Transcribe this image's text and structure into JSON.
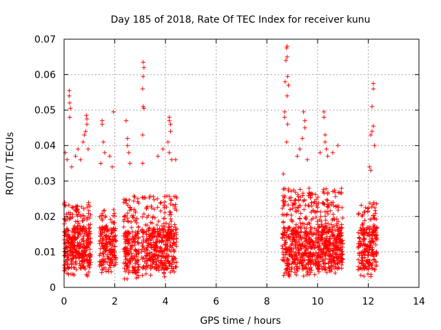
{
  "chart_data": {
    "type": "scatter",
    "title": "Day 185 of 2018, Rate Of TEC Index for receiver kunu",
    "xlabel": "GPS time / hours",
    "ylabel": "ROTI / TECUs",
    "xlim": [
      0,
      14
    ],
    "ylim": [
      0,
      0.07
    ],
    "grid": true,
    "marker": "+",
    "color": "#ff0000",
    "x_ticks": [
      "0",
      "2",
      "4",
      "6",
      "8",
      "10",
      "12",
      "14"
    ],
    "y_ticks": [
      "0",
      "0.01",
      "0.02",
      "0.03",
      "0.04",
      "0.05",
      "0.06",
      "0.07"
    ],
    "clusters": [
      {
        "x_start": 0.0,
        "x_end": 1.05,
        "y_low": 0.003,
        "y_high": 0.024,
        "count": 380
      },
      {
        "x_start": 1.4,
        "x_end": 2.05,
        "y_low": 0.003,
        "y_high": 0.022,
        "count": 190
      },
      {
        "x_start": 2.35,
        "x_end": 2.95,
        "y_low": 0.002,
        "y_high": 0.026,
        "count": 200
      },
      {
        "x_start": 3.05,
        "x_end": 4.45,
        "y_low": 0.003,
        "y_high": 0.026,
        "count": 420
      },
      {
        "x_start": 8.6,
        "x_end": 11.0,
        "y_low": 0.003,
        "y_high": 0.028,
        "count": 850
      },
      {
        "x_start": 11.6,
        "x_end": 12.35,
        "y_low": 0.003,
        "y_high": 0.024,
        "count": 230
      }
    ],
    "peaks": [
      {
        "x": 0.2,
        "y": 0.0555
      },
      {
        "x": 0.2,
        "y": 0.054
      },
      {
        "x": 0.22,
        "y": 0.052
      },
      {
        "x": 0.25,
        "y": 0.0505
      },
      {
        "x": 0.22,
        "y": 0.048
      },
      {
        "x": 0.05,
        "y": 0.038
      },
      {
        "x": 0.12,
        "y": 0.036
      },
      {
        "x": 0.3,
        "y": 0.034
      },
      {
        "x": 0.45,
        "y": 0.037
      },
      {
        "x": 0.55,
        "y": 0.039
      },
      {
        "x": 0.65,
        "y": 0.036
      },
      {
        "x": 0.75,
        "y": 0.041
      },
      {
        "x": 0.8,
        "y": 0.043
      },
      {
        "x": 0.88,
        "y": 0.0485
      },
      {
        "x": 0.9,
        "y": 0.0475
      },
      {
        "x": 0.9,
        "y": 0.046
      },
      {
        "x": 0.85,
        "y": 0.044
      },
      {
        "x": 0.95,
        "y": 0.039
      },
      {
        "x": 1.5,
        "y": 0.047
      },
      {
        "x": 1.5,
        "y": 0.046
      },
      {
        "x": 1.55,
        "y": 0.041
      },
      {
        "x": 1.6,
        "y": 0.038
      },
      {
        "x": 1.45,
        "y": 0.035
      },
      {
        "x": 1.95,
        "y": 0.0495
      },
      {
        "x": 1.8,
        "y": 0.037
      },
      {
        "x": 1.9,
        "y": 0.034
      },
      {
        "x": 2.45,
        "y": 0.047
      },
      {
        "x": 2.5,
        "y": 0.042
      },
      {
        "x": 2.5,
        "y": 0.04
      },
      {
        "x": 2.55,
        "y": 0.038
      },
      {
        "x": 2.6,
        "y": 0.035
      },
      {
        "x": 3.12,
        "y": 0.0635
      },
      {
        "x": 3.15,
        "y": 0.062
      },
      {
        "x": 3.12,
        "y": 0.0595
      },
      {
        "x": 3.1,
        "y": 0.056
      },
      {
        "x": 3.12,
        "y": 0.051
      },
      {
        "x": 3.15,
        "y": 0.0505
      },
      {
        "x": 3.1,
        "y": 0.043
      },
      {
        "x": 3.1,
        "y": 0.035
      },
      {
        "x": 3.7,
        "y": 0.037
      },
      {
        "x": 3.9,
        "y": 0.039
      },
      {
        "x": 4.15,
        "y": 0.048
      },
      {
        "x": 4.15,
        "y": 0.047
      },
      {
        "x": 4.2,
        "y": 0.046
      },
      {
        "x": 4.2,
        "y": 0.044
      },
      {
        "x": 4.1,
        "y": 0.041
      },
      {
        "x": 4.15,
        "y": 0.038
      },
      {
        "x": 4.25,
        "y": 0.036
      },
      {
        "x": 4.4,
        "y": 0.036
      },
      {
        "x": 8.65,
        "y": 0.032
      },
      {
        "x": 8.7,
        "y": 0.0495
      },
      {
        "x": 8.7,
        "y": 0.048
      },
      {
        "x": 8.72,
        "y": 0.058
      },
      {
        "x": 8.75,
        "y": 0.064
      },
      {
        "x": 8.78,
        "y": 0.0675
      },
      {
        "x": 8.8,
        "y": 0.068
      },
      {
        "x": 8.8,
        "y": 0.065
      },
      {
        "x": 8.82,
        "y": 0.0595
      },
      {
        "x": 8.85,
        "y": 0.057
      },
      {
        "x": 8.8,
        "y": 0.054
      },
      {
        "x": 8.82,
        "y": 0.046
      },
      {
        "x": 8.78,
        "y": 0.041
      },
      {
        "x": 9.45,
        "y": 0.0495
      },
      {
        "x": 9.5,
        "y": 0.047
      },
      {
        "x": 9.5,
        "y": 0.045
      },
      {
        "x": 9.4,
        "y": 0.042
      },
      {
        "x": 9.3,
        "y": 0.039
      },
      {
        "x": 9.2,
        "y": 0.037
      },
      {
        "x": 9.6,
        "y": 0.036
      },
      {
        "x": 10.25,
        "y": 0.0495
      },
      {
        "x": 10.25,
        "y": 0.048
      },
      {
        "x": 10.3,
        "y": 0.043
      },
      {
        "x": 10.3,
        "y": 0.041
      },
      {
        "x": 10.35,
        "y": 0.039
      },
      {
        "x": 10.4,
        "y": 0.037
      },
      {
        "x": 10.1,
        "y": 0.038
      },
      {
        "x": 10.6,
        "y": 0.038
      },
      {
        "x": 10.8,
        "y": 0.04
      },
      {
        "x": 12.05,
        "y": 0.034
      },
      {
        "x": 12.1,
        "y": 0.033
      },
      {
        "x": 12.2,
        "y": 0.0575
      },
      {
        "x": 12.2,
        "y": 0.056
      },
      {
        "x": 12.15,
        "y": 0.051
      },
      {
        "x": 12.2,
        "y": 0.0455
      },
      {
        "x": 12.15,
        "y": 0.044
      },
      {
        "x": 12.1,
        "y": 0.043
      },
      {
        "x": 12.25,
        "y": 0.04
      }
    ]
  }
}
